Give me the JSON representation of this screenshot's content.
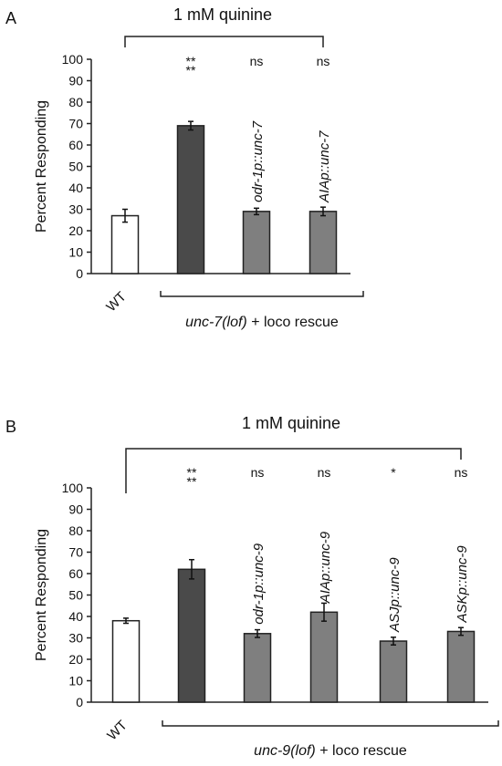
{
  "chart_data": [
    {
      "type": "bar",
      "panel": "A",
      "title": "1 mM quinine",
      "ylabel": "Percent Responding",
      "ylim": [
        0,
        100
      ],
      "yticks": [
        0,
        10,
        20,
        30,
        40,
        50,
        60,
        70,
        80,
        90,
        100
      ],
      "categories": [
        "WT",
        "",
        "odr-1p::unc-7",
        "AIAp::unc-7"
      ],
      "values": [
        27,
        69,
        29,
        29
      ],
      "errors": [
        3,
        2,
        1.5,
        2
      ],
      "colors": [
        "#ffffff",
        "#4a4a4a",
        "#7f7f7f",
        "#7f7f7f"
      ],
      "significance": [
        "",
        "**\n**",
        "ns",
        "ns"
      ],
      "group_label": {
        "italic": "unc-7(lof)",
        "rest": " + loco rescue"
      }
    },
    {
      "type": "bar",
      "panel": "B",
      "title": "1 mM quinine",
      "ylabel": "Percent Responding",
      "ylim": [
        0,
        100
      ],
      "yticks": [
        0,
        10,
        20,
        30,
        40,
        50,
        60,
        70,
        80,
        90,
        100
      ],
      "categories": [
        "WT",
        "",
        "odr-1p::unc-9",
        "AIAp::unc-9",
        "ASJp::unc-9",
        "ASKp::unc-9"
      ],
      "values": [
        38,
        62,
        32,
        42,
        28.5,
        33
      ],
      "errors": [
        1.2,
        4.5,
        1.8,
        4.2,
        1.8,
        1.8
      ],
      "colors": [
        "#ffffff",
        "#4a4a4a",
        "#7f7f7f",
        "#7f7f7f",
        "#7f7f7f",
        "#7f7f7f"
      ],
      "significance": [
        "",
        "**\n**",
        "ns",
        "ns",
        "*",
        "ns"
      ],
      "group_label": {
        "italic": "unc-9(lof)",
        "rest": " + loco rescue"
      }
    }
  ]
}
